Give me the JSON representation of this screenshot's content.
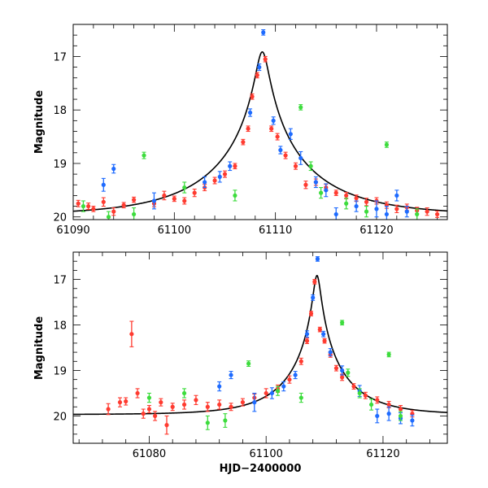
{
  "chart_data": [
    {
      "type": "scatter",
      "name": "top-panel",
      "ylabel": "Magnitude",
      "xlabel": "",
      "xlim": [
        61090,
        61127
      ],
      "ylim": [
        20.05,
        16.4
      ],
      "y_inverted": true,
      "x_ticks": [
        61090,
        61100,
        61110,
        61120
      ],
      "y_ticks": [
        17,
        18,
        19,
        20
      ],
      "model_curve": {
        "t0": 61108.7,
        "u0": 0.06,
        "tE": 10.0,
        "base": 19.97
      },
      "series": [
        {
          "name": "red",
          "color": "#ff3b30",
          "points": [
            [
              61090.5,
              19.75,
              0.06
            ],
            [
              61091.5,
              19.8,
              0.06
            ],
            [
              61092,
              19.85,
              0.05
            ],
            [
              61093,
              19.72,
              0.08
            ],
            [
              61094,
              19.9,
              0.07
            ],
            [
              61095,
              19.78,
              0.05
            ],
            [
              61096,
              19.68,
              0.05
            ],
            [
              61098,
              19.75,
              0.06
            ],
            [
              61099,
              19.6,
              0.08
            ],
            [
              61100,
              19.66,
              0.05
            ],
            [
              61101,
              19.7,
              0.06
            ],
            [
              61102,
              19.55,
              0.07
            ],
            [
              61103,
              19.45,
              0.06
            ],
            [
              61104,
              19.32,
              0.06
            ],
            [
              61105,
              19.2,
              0.06
            ],
            [
              61106,
              19.05,
              0.05
            ],
            [
              61106.8,
              18.6,
              0.05
            ],
            [
              61107.3,
              18.35,
              0.05
            ],
            [
              61107.7,
              17.75,
              0.05
            ],
            [
              61108.2,
              17.35,
              0.05
            ],
            [
              61109,
              17.05,
              0.05
            ],
            [
              61109.6,
              18.35,
              0.05
            ],
            [
              61110.2,
              18.5,
              0.06
            ],
            [
              61111,
              18.85,
              0.06
            ],
            [
              61112,
              19.05,
              0.06
            ],
            [
              61113,
              19.4,
              0.07
            ],
            [
              61114,
              19.35,
              0.06
            ],
            [
              61115,
              19.45,
              0.06
            ],
            [
              61116,
              19.55,
              0.05
            ],
            [
              61117,
              19.6,
              0.06
            ],
            [
              61118,
              19.65,
              0.06
            ],
            [
              61119,
              19.72,
              0.07
            ],
            [
              61120,
              19.7,
              0.06
            ],
            [
              61121,
              19.78,
              0.06
            ],
            [
              61122,
              19.85,
              0.07
            ],
            [
              61123,
              19.82,
              0.06
            ],
            [
              61124,
              19.88,
              0.06
            ],
            [
              61125,
              19.9,
              0.07
            ],
            [
              61126,
              19.95,
              0.06
            ]
          ]
        },
        {
          "name": "blue",
          "color": "#1e6bff",
          "points": [
            [
              61093,
              19.4,
              0.12
            ],
            [
              61094,
              19.1,
              0.08
            ],
            [
              61098,
              19.7,
              0.15
            ],
            [
              61103,
              19.35,
              0.1
            ],
            [
              61104.5,
              19.25,
              0.1
            ],
            [
              61105.5,
              19.05,
              0.08
            ],
            [
              61107.5,
              18.05,
              0.07
            ],
            [
              61108.4,
              17.2,
              0.06
            ],
            [
              61108.8,
              16.55,
              0.05
            ],
            [
              61109.8,
              18.2,
              0.07
            ],
            [
              61110.5,
              18.75,
              0.07
            ],
            [
              61111.5,
              18.45,
              0.1
            ],
            [
              61112.5,
              18.9,
              0.12
            ],
            [
              61114,
              19.35,
              0.1
            ],
            [
              61115,
              19.5,
              0.12
            ],
            [
              61116,
              19.95,
              0.12
            ],
            [
              61118,
              19.8,
              0.1
            ],
            [
              61120,
              19.85,
              0.15
            ],
            [
              61121,
              19.95,
              0.15
            ],
            [
              61122,
              19.6,
              0.1
            ],
            [
              61123,
              19.9,
              0.1
            ]
          ]
        },
        {
          "name": "green",
          "color": "#3ddc3d",
          "points": [
            [
              61091,
              19.8,
              0.1
            ],
            [
              61093.5,
              20,
              0.1
            ],
            [
              61096,
              19.95,
              0.12
            ],
            [
              61097,
              18.85,
              0.06
            ],
            [
              61101,
              19.45,
              0.1
            ],
            [
              61106,
              19.6,
              0.1
            ],
            [
              61112.5,
              17.95,
              0.05
            ],
            [
              61113.5,
              19.05,
              0.08
            ],
            [
              61114.5,
              19.55,
              0.1
            ],
            [
              61117,
              19.75,
              0.1
            ],
            [
              61119,
              19.9,
              0.1
            ],
            [
              61121,
              18.65,
              0.05
            ],
            [
              61124,
              19.95,
              0.1
            ]
          ]
        }
      ]
    },
    {
      "type": "scatter",
      "name": "bottom-panel",
      "ylabel": "Magnitude",
      "xlabel": "HJD−2400000",
      "xlim": [
        61067,
        61131
      ],
      "ylim": [
        20.6,
        16.4
      ],
      "y_inverted": true,
      "x_ticks": [
        61080,
        61100,
        61120
      ],
      "y_ticks": [
        17,
        18,
        19,
        20
      ],
      "model_curve": {
        "t0": 61108.7,
        "u0": 0.06,
        "tE": 10.0,
        "base": 19.97
      },
      "series": [
        {
          "name": "red",
          "color": "#ff3b30",
          "points": [
            [
              61073,
              19.85,
              0.12
            ],
            [
              61075,
              19.7,
              0.1
            ],
            [
              61076,
              19.68,
              0.08
            ],
            [
              61077,
              18.2,
              0.28
            ],
            [
              61078,
              19.5,
              0.1
            ],
            [
              61079,
              19.95,
              0.1
            ],
            [
              61080,
              19.85,
              0.08
            ],
            [
              61081,
              20.0,
              0.1
            ],
            [
              61082,
              19.7,
              0.08
            ],
            [
              61083,
              20.2,
              0.2
            ],
            [
              61084,
              19.8,
              0.08
            ],
            [
              61086,
              19.75,
              0.1
            ],
            [
              61088,
              19.65,
              0.1
            ],
            [
              61090,
              19.8,
              0.1
            ],
            [
              61092,
              19.75,
              0.1
            ],
            [
              61094,
              19.8,
              0.08
            ],
            [
              61096,
              19.7,
              0.08
            ],
            [
              61098,
              19.6,
              0.08
            ],
            [
              61100,
              19.5,
              0.1
            ],
            [
              61102,
              19.4,
              0.08
            ],
            [
              61104,
              19.2,
              0.08
            ],
            [
              61106,
              18.8,
              0.07
            ],
            [
              61107,
              18.35,
              0.06
            ],
            [
              61107.7,
              17.75,
              0.05
            ],
            [
              61108.3,
              17.05,
              0.05
            ],
            [
              61109.2,
              18.1,
              0.05
            ],
            [
              61110,
              18.35,
              0.05
            ],
            [
              61111,
              18.65,
              0.06
            ],
            [
              61112,
              18.95,
              0.06
            ],
            [
              61113,
              19.15,
              0.07
            ],
            [
              61115,
              19.35,
              0.06
            ],
            [
              61117,
              19.55,
              0.07
            ],
            [
              61119,
              19.65,
              0.07
            ],
            [
              61121,
              19.75,
              0.07
            ],
            [
              61123,
              19.85,
              0.08
            ],
            [
              61125,
              19.95,
              0.07
            ]
          ]
        },
        {
          "name": "blue",
          "color": "#1e6bff",
          "points": [
            [
              61092,
              19.35,
              0.1
            ],
            [
              61094,
              19.1,
              0.08
            ],
            [
              61098,
              19.7,
              0.2
            ],
            [
              61101,
              19.5,
              0.12
            ],
            [
              61103,
              19.35,
              0.1
            ],
            [
              61105,
              19.1,
              0.08
            ],
            [
              61107,
              18.2,
              0.07
            ],
            [
              61108,
              17.4,
              0.06
            ],
            [
              61108.8,
              16.55,
              0.05
            ],
            [
              61109.8,
              18.2,
              0.06
            ],
            [
              61111,
              18.6,
              0.08
            ],
            [
              61113,
              19.0,
              0.1
            ],
            [
              61116,
              19.45,
              0.12
            ],
            [
              61119,
              20.0,
              0.15
            ],
            [
              61121,
              19.95,
              0.15
            ],
            [
              61123,
              20.05,
              0.12
            ],
            [
              61125,
              20.1,
              0.12
            ]
          ]
        },
        {
          "name": "green",
          "color": "#3ddc3d",
          "points": [
            [
              61080,
              19.6,
              0.1
            ],
            [
              61086,
              19.5,
              0.1
            ],
            [
              61090,
              20.15,
              0.15
            ],
            [
              61093,
              20.1,
              0.15
            ],
            [
              61097,
              18.85,
              0.06
            ],
            [
              61102,
              19.45,
              0.1
            ],
            [
              61106,
              19.6,
              0.1
            ],
            [
              61113,
              17.95,
              0.05
            ],
            [
              61114,
              19.05,
              0.08
            ],
            [
              61116,
              19.5,
              0.1
            ],
            [
              61118,
              19.75,
              0.12
            ],
            [
              61121,
              18.65,
              0.05
            ],
            [
              61123,
              20.0,
              0.1
            ]
          ]
        }
      ]
    }
  ]
}
